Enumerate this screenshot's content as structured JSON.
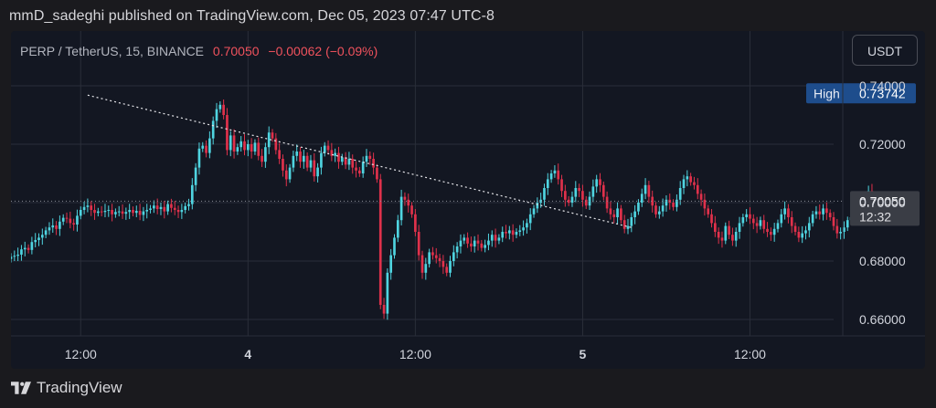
{
  "header": {
    "published": "mmD_sadeghi published on TradingView.com, Dec 05, 2023 07:47 UTC-8"
  },
  "legend": {
    "symbol": "PERP / TetherUS, 15, BINANCE",
    "price": "0.70050",
    "change": "−0.00062 (−0.09%)"
  },
  "unit_button": "USDT",
  "badges": {
    "high_label": "High",
    "high_value": "0.73742",
    "last_value": "0.70050",
    "countdown": "12:32"
  },
  "footer": {
    "brand": "TradingView"
  },
  "colors": {
    "up": "#4fd4e0",
    "down": "#e0314b",
    "grid": "#2a2e39",
    "axis_text": "#d1d4dc",
    "high_badge": "#1e4d8c",
    "last_badge": "#3a3d45"
  },
  "chart_data": {
    "type": "candlestick",
    "ylim": [
      0.655,
      0.74
    ],
    "yticks": [
      "0.74000",
      "0.72000",
      "0.70000",
      "0.68000",
      "0.66000"
    ],
    "yticks_values": [
      0.74,
      0.72,
      0.7,
      0.68,
      0.66
    ],
    "xticks": [
      "12:00",
      "4",
      "12:00",
      "5",
      "12:00"
    ],
    "xticks_hours": [
      0,
      12,
      24,
      36,
      48
    ],
    "xlim_hours": [
      -5,
      54
    ],
    "first_bar_hour": -5,
    "bar_hours": 0.25,
    "closes": [
      0.6815,
      0.6818,
      0.6822,
      0.684,
      0.6845,
      0.6838,
      0.6865,
      0.6872,
      0.688,
      0.689,
      0.6905,
      0.6915,
      0.6922,
      0.691,
      0.6935,
      0.6948,
      0.6945,
      0.693,
      0.6925,
      0.6955,
      0.6975,
      0.6985,
      0.699,
      0.6975,
      0.6965,
      0.697,
      0.6968,
      0.6972,
      0.6975,
      0.696,
      0.6968,
      0.697,
      0.6962,
      0.6968,
      0.6975,
      0.6965,
      0.6972,
      0.6958,
      0.697,
      0.6975,
      0.698,
      0.699,
      0.6978,
      0.6985,
      0.697,
      0.6995,
      0.6982,
      0.6975,
      0.6968,
      0.6975,
      0.6988,
      0.6995,
      0.706,
      0.712,
      0.7185,
      0.7195,
      0.717,
      0.722,
      0.728,
      0.732,
      0.7335,
      0.73,
      0.718,
      0.723,
      0.7175,
      0.719,
      0.721,
      0.718,
      0.72,
      0.7175,
      0.7205,
      0.716,
      0.714,
      0.719,
      0.724,
      0.722,
      0.718,
      0.715,
      0.711,
      0.708,
      0.712,
      0.716,
      0.7175,
      0.714,
      0.716,
      0.712,
      0.7145,
      0.709,
      0.712,
      0.717,
      0.7195,
      0.718,
      0.716,
      0.717,
      0.714,
      0.7155,
      0.713,
      0.715,
      0.712,
      0.711,
      0.71,
      0.714,
      0.716,
      0.715,
      0.712,
      0.708,
      0.665,
      0.662,
      0.676,
      0.682,
      0.688,
      0.694,
      0.702,
      0.701,
      0.699,
      0.696,
      0.69,
      0.682,
      0.676,
      0.679,
      0.683,
      0.682,
      0.681,
      0.68,
      0.678,
      0.676,
      0.68,
      0.683,
      0.685,
      0.687,
      0.688,
      0.686,
      0.685,
      0.687,
      0.686,
      0.6845,
      0.6855,
      0.687,
      0.689,
      0.687,
      0.688,
      0.69,
      0.6895,
      0.6905,
      0.689,
      0.69,
      0.6905,
      0.6915,
      0.693,
      0.696,
      0.698,
      0.7,
      0.701,
      0.705,
      0.708,
      0.71,
      0.711,
      0.708,
      0.704,
      0.701,
      0.7,
      0.702,
      0.705,
      0.704,
      0.701,
      0.699,
      0.702,
      0.7055,
      0.708,
      0.706,
      0.702,
      0.698,
      0.696,
      0.695,
      0.698,
      0.694,
      0.691,
      0.692,
      0.695,
      0.697,
      0.7,
      0.703,
      0.706,
      0.702,
      0.699,
      0.696,
      0.697,
      0.699,
      0.701,
      0.7,
      0.6985,
      0.701,
      0.705,
      0.708,
      0.709,
      0.707,
      0.706,
      0.703,
      0.701,
      0.698,
      0.696,
      0.693,
      0.69,
      0.688,
      0.687,
      0.692,
      0.689,
      0.687,
      0.69,
      0.693,
      0.695,
      0.696,
      0.6945,
      0.693,
      0.692,
      0.694,
      0.691,
      0.69,
      0.689,
      0.691,
      0.693,
      0.696,
      0.698,
      0.695,
      0.692,
      0.69,
      0.688,
      0.6895,
      0.6905,
      0.693,
      0.696,
      0.697,
      0.696,
      0.698,
      0.6965,
      0.695,
      0.692,
      0.6895,
      0.69,
      0.6915,
      0.694,
      0.695,
      0.6965,
      0.6975,
      0.699,
      0.702,
      0.704,
      0.702,
      0.7005
    ],
    "trendline": {
      "start": [
        0.5,
        0.7368
      ],
      "end": [
        39.5,
        0.6915
      ]
    },
    "price_line": 0.7005,
    "high": 0.73742,
    "last": 0.7005
  }
}
